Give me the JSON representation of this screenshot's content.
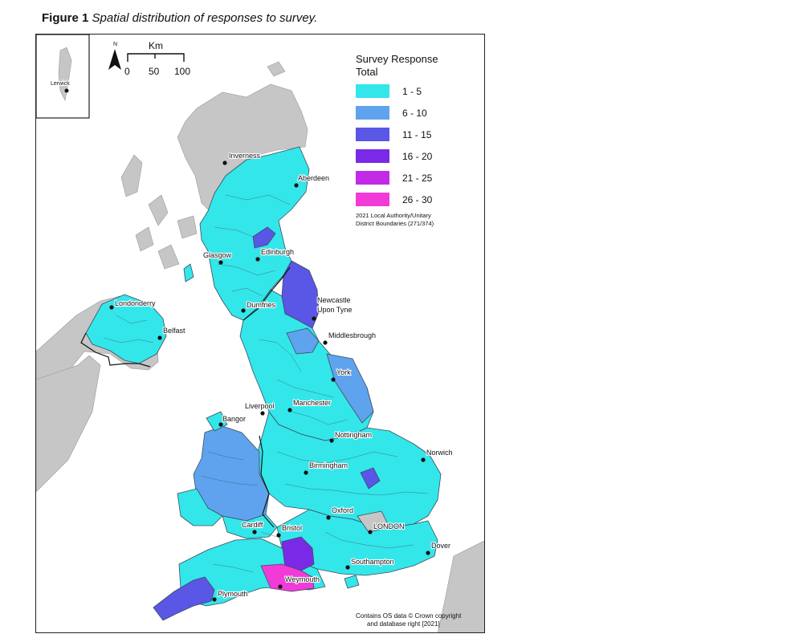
{
  "figure": {
    "label": "Figure 1",
    "caption": "Spatial distribution of responses to survey."
  },
  "scale_bar": {
    "north": "N",
    "unit": "Km",
    "ticks": [
      "0",
      "50",
      "100"
    ]
  },
  "inset": {
    "place": "Lerwick"
  },
  "legend": {
    "title_line1": "Survey Response",
    "title_line2": "Total",
    "classes": [
      {
        "label": "1 - 5",
        "color": "#33e6ea"
      },
      {
        "label": "6 - 10",
        "color": "#5fa3ee"
      },
      {
        "label": "11 - 15",
        "color": "#5a56e6"
      },
      {
        "label": "16 - 20",
        "color": "#7a2ae6"
      },
      {
        "label": "21 - 25",
        "color": "#c22ae6"
      },
      {
        "label": "26 - 30",
        "color": "#f23ad8"
      }
    ],
    "note_line1": "2021 Local Authority/Unitary",
    "note_line2": "District Boundaries (271/374)"
  },
  "places": {
    "inverness": "Inverness",
    "aberdeen": "Aberdeen",
    "glasgow": "Glasgow",
    "edinburgh": "Edinburgh",
    "londonderry": "Londonderry",
    "belfast": "Belfast",
    "dumfries": "Dumfries",
    "newcastle_1": "Newcastle",
    "newcastle_2": "Upon Tyne",
    "middlesbrough": "Middlesbrough",
    "york": "York",
    "liverpool": "Liverpool",
    "manchester": "Manchester",
    "bangor": "Bangor",
    "nottingham": "Nottingham",
    "norwich": "Norwich",
    "birmingham": "Birmingham",
    "oxford": "Oxford",
    "cardiff": "Cardiff",
    "bristol": "Bristol",
    "london": "LONDON",
    "dover": "Dover",
    "southampton": "Southampton",
    "weymouth": "Weymouth",
    "plymouth": "Plymouth"
  },
  "credit": {
    "line1": "Contains OS data © Crown copyright",
    "line2": "and database right [2021]"
  },
  "colors": {
    "background_land": "#c6c6c6",
    "class_1_5": "#33e6ea",
    "class_6_10": "#5fa3ee",
    "class_11_15": "#5a56e6",
    "class_16_20": "#7a2ae6",
    "class_21_25": "#c22ae6",
    "class_26_30": "#f23ad8"
  }
}
